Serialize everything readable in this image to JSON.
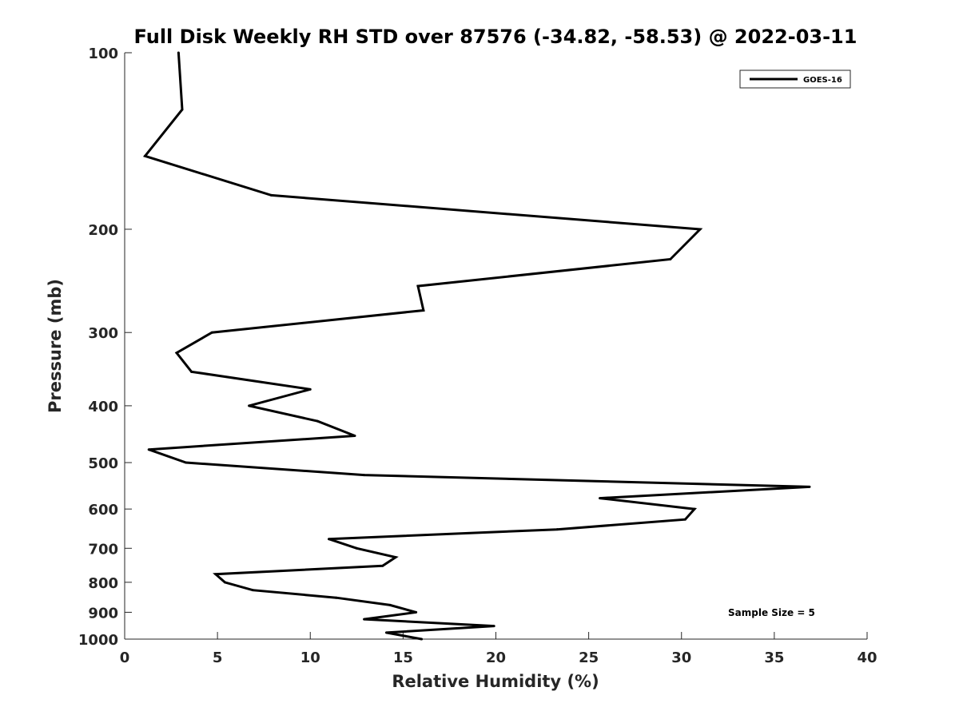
{
  "chart_data": {
    "type": "line",
    "title": "Full Disk Weekly RH STD over 87576 (-34.82, -58.53) @ 2022-03-11",
    "xlabel": "Relative Humidity (%)",
    "ylabel": "Pressure (mb)",
    "xlim": [
      0,
      40
    ],
    "ylim": [
      100,
      1000
    ],
    "y_scale": "log",
    "y_reversed": true,
    "x_ticks": [
      0,
      5,
      10,
      15,
      20,
      25,
      30,
      35,
      40
    ],
    "y_ticks": [
      100,
      200,
      300,
      400,
      500,
      600,
      700,
      800,
      900,
      1000
    ],
    "grid": false,
    "legend_position": "top-right",
    "annotation": "Sample Size = 5",
    "series": [
      {
        "name": "GOES-16",
        "color": "#000000",
        "points": [
          {
            "x": 2.9,
            "y": 100
          },
          {
            "x": 3.1,
            "y": 125
          },
          {
            "x": 1.1,
            "y": 150
          },
          {
            "x": 7.9,
            "y": 175
          },
          {
            "x": 31.0,
            "y": 200
          },
          {
            "x": 29.4,
            "y": 225
          },
          {
            "x": 15.8,
            "y": 250
          },
          {
            "x": 16.1,
            "y": 275
          },
          {
            "x": 4.7,
            "y": 300
          },
          {
            "x": 2.8,
            "y": 325
          },
          {
            "x": 3.6,
            "y": 350
          },
          {
            "x": 10.0,
            "y": 375
          },
          {
            "x": 6.7,
            "y": 400
          },
          {
            "x": 10.4,
            "y": 425
          },
          {
            "x": 12.4,
            "y": 450
          },
          {
            "x": 1.3,
            "y": 475
          },
          {
            "x": 3.3,
            "y": 500
          },
          {
            "x": 12.9,
            "y": 525
          },
          {
            "x": 36.9,
            "y": 550
          },
          {
            "x": 25.6,
            "y": 575
          },
          {
            "x": 30.7,
            "y": 600
          },
          {
            "x": 30.2,
            "y": 625
          },
          {
            "x": 23.3,
            "y": 650
          },
          {
            "x": 11.0,
            "y": 675
          },
          {
            "x": 12.5,
            "y": 700
          },
          {
            "x": 14.6,
            "y": 725
          },
          {
            "x": 13.9,
            "y": 750
          },
          {
            "x": 4.9,
            "y": 775
          },
          {
            "x": 5.4,
            "y": 800
          },
          {
            "x": 6.9,
            "y": 825
          },
          {
            "x": 11.4,
            "y": 850
          },
          {
            "x": 14.3,
            "y": 875
          },
          {
            "x": 15.7,
            "y": 900
          },
          {
            "x": 12.9,
            "y": 925
          },
          {
            "x": 19.9,
            "y": 950
          },
          {
            "x": 14.1,
            "y": 975
          },
          {
            "x": 16.0,
            "y": 1000
          }
        ]
      }
    ]
  }
}
